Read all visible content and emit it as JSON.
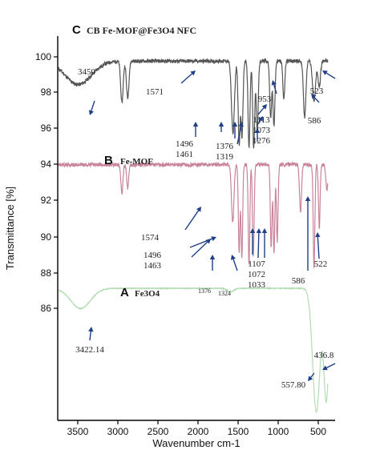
{
  "chart_data": {
    "type": "line",
    "xlabel": "Wavenumber cm-1",
    "ylabel": "Transmittance [%]",
    "xlim": [
      3700,
      330
    ],
    "ylim": [
      78.5,
      101.5
    ],
    "x_ticks": [
      "3500",
      "3000",
      "2500",
      "2000",
      "1500",
      "1000",
      "500"
    ],
    "y_ticks": [
      "100",
      "98",
      "96",
      "94",
      "92",
      "90",
      "88",
      "86"
    ],
    "grid": false,
    "series": [
      {
        "name": "CB Fe-MOF@Fe3O4 NFC",
        "letter": "C",
        "color": "#555555",
        "baseline": 100,
        "dips": [
          [
            3450,
            1.4,
            160
          ],
          [
            2920,
            2.5,
            15
          ],
          [
            2850,
            2.2,
            15
          ],
          [
            1571,
            4.3,
            18
          ],
          [
            1496,
            5.0,
            12
          ],
          [
            1461,
            4.5,
            12
          ],
          [
            1376,
            5.2,
            12
          ],
          [
            1319,
            5.2,
            12
          ],
          [
            1276,
            4.2,
            12
          ],
          [
            1113,
            3.4,
            12
          ],
          [
            1073,
            3.9,
            12
          ],
          [
            953,
            2.2,
            12
          ],
          [
            700,
            3.4,
            15
          ],
          [
            586,
            2.4,
            18
          ],
          [
            523,
            1.6,
            15
          ]
        ],
        "peak_labels": [
          {
            "text": "3450",
            "x": 3450
          },
          {
            "text": "1571",
            "x": 1571
          },
          {
            "text": "1496",
            "x": 1496
          },
          {
            "text": "1461",
            "x": 1461
          },
          {
            "text": "1376",
            "x": 1376
          },
          {
            "text": "1319",
            "x": 1319
          },
          {
            "text": "1113",
            "x": 1113
          },
          {
            "text": "1073",
            "x": 1073
          },
          {
            "text": "1276",
            "x": 1276
          },
          {
            "text": "953",
            "x": 953
          },
          {
            "text": "586",
            "x": 586
          },
          {
            "text": "523",
            "x": 523
          }
        ]
      },
      {
        "name": "Fe-MOF",
        "letter": "B",
        "color": "#c9849b",
        "baseline": 93.8,
        "dips": [
          [
            2920,
            1.8,
            12
          ],
          [
            2850,
            1.4,
            12
          ],
          [
            1574,
            3.5,
            15
          ],
          [
            1496,
            5.2,
            10
          ],
          [
            1463,
            5.6,
            10
          ],
          [
            1376,
            6.0,
            10
          ],
          [
            1324,
            5.5,
            10
          ],
          [
            1107,
            5.0,
            10
          ],
          [
            1072,
            5.3,
            10
          ],
          [
            1033,
            4.6,
            10
          ],
          [
            750,
            2.8,
            12
          ],
          [
            586,
            6.2,
            10
          ],
          [
            522,
            3.8,
            10
          ],
          [
            430,
            1.5,
            12
          ]
        ],
        "peak_labels": [
          {
            "text": "1574",
            "x": 1574
          },
          {
            "text": "1496",
            "x": 1496
          },
          {
            "text": "1463",
            "x": 1463
          },
          {
            "text": "1376",
            "x": 1376
          },
          {
            "text": "1324",
            "x": 1324
          },
          {
            "text": "1107",
            "x": 1107
          },
          {
            "text": "1072",
            "x": 1072
          },
          {
            "text": "1033",
            "x": 1033
          },
          {
            "text": "586",
            "x": 586
          },
          {
            "text": "522",
            "x": 522
          }
        ]
      },
      {
        "name": "Fe3O4",
        "letter": "A",
        "color": "#b5dcb5",
        "baseline": 86.4,
        "dips": [
          [
            3422.14,
            1.2,
            120
          ],
          [
            1600,
            0.2,
            40
          ],
          [
            557.8,
            7.4,
            45
          ],
          [
            436.8,
            6.6,
            30
          ]
        ],
        "peak_labels": [
          {
            "text": "3422.14",
            "x": 3422.14
          },
          {
            "text": "557.80",
            "x": 557.8
          },
          {
            "text": "436.8",
            "x": 436.8
          }
        ]
      }
    ]
  }
}
